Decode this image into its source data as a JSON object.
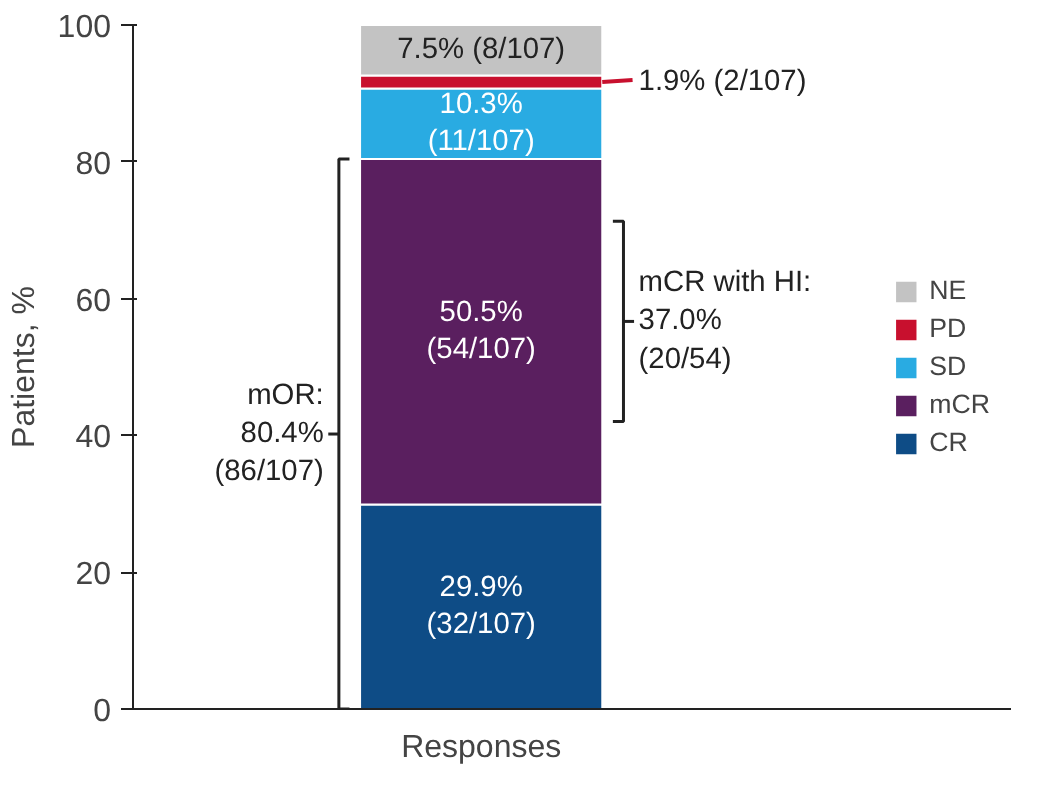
{
  "chart_data": {
    "type": "bar",
    "stacked": true,
    "categories": [
      "Responses"
    ],
    "ylabel": "Patients, %",
    "ylim": [
      0,
      100
    ],
    "yticks": [
      0,
      20,
      40,
      60,
      80,
      100
    ],
    "grid": false,
    "legend": "right",
    "series": [
      {
        "name": "CR",
        "color": "#0e4c86",
        "values": [
          29.9
        ],
        "value_labels": [
          "29.9%\n(32/107)"
        ]
      },
      {
        "name": "mCR",
        "color": "#5a1f5f",
        "values": [
          50.5
        ],
        "value_labels": [
          "50.5%\n(54/107)"
        ]
      },
      {
        "name": "SD",
        "color": "#29abe2",
        "values": [
          10.3
        ],
        "value_labels": [
          "10.3%\n(11/107)"
        ]
      },
      {
        "name": "PD",
        "color": "#c8102e",
        "values": [
          1.9
        ],
        "value_labels": [
          "1.9% (2/107)"
        ]
      },
      {
        "name": "NE",
        "color": "#c3c3c3",
        "values": [
          7.5
        ],
        "value_labels": [
          "7.5% (8/107)"
        ]
      }
    ],
    "annotations": [
      "mOR:\n80.4%\n(86/107)",
      "mCR with HI:\n37.0%\n(20/54)"
    ]
  }
}
